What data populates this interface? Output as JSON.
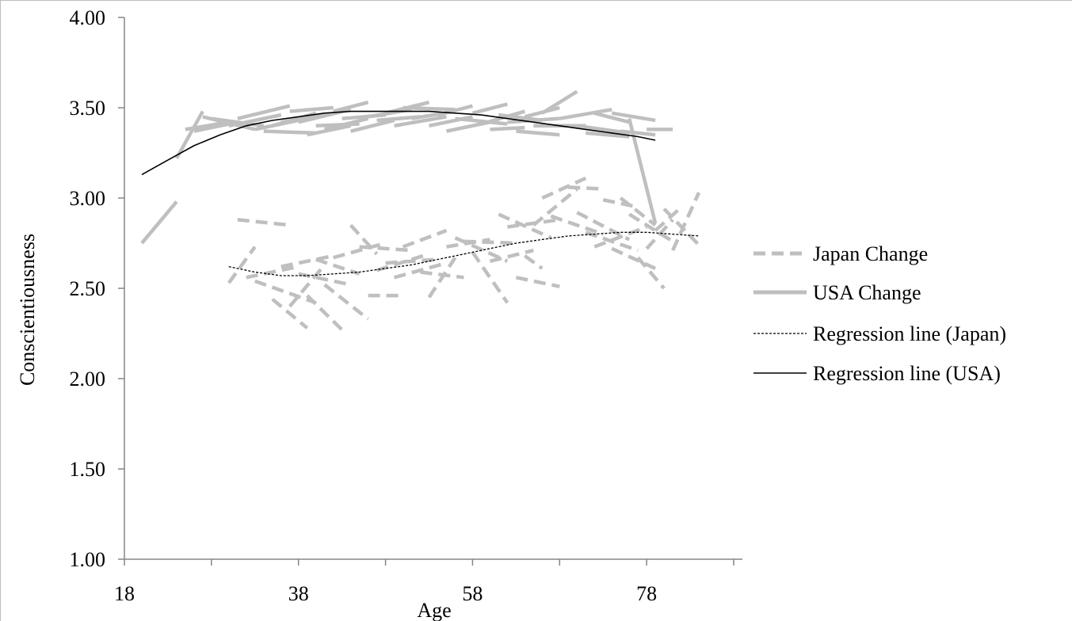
{
  "chart_data": {
    "type": "line",
    "title": "",
    "xlabel": "Age",
    "ylabel": "Conscientiousness",
    "xlim": [
      18,
      89
    ],
    "ylim": [
      1.0,
      4.0
    ],
    "x_ticks": [
      "18",
      "38",
      "58",
      "78"
    ],
    "y_ticks": [
      "1.00",
      "1.50",
      "2.00",
      "2.50",
      "3.00",
      "3.50",
      "4.00"
    ],
    "grid": false,
    "legend_position": "right",
    "legend": [
      "Japan Change",
      "USA Change",
      "Regression line (Japan)",
      "Regression line (USA)"
    ],
    "colors": {
      "change": "#bfbfbf",
      "regression": "#000000"
    },
    "series": [
      {
        "name": "Japan Change",
        "style": "dashed",
        "segments": [
          [
            [
              30,
              2.53
            ],
            [
              33,
              2.73
            ]
          ],
          [
            [
              31,
              2.88
            ],
            [
              37,
              2.85
            ]
          ],
          [
            [
              32,
              2.56
            ],
            [
              38,
              2.62
            ]
          ],
          [
            [
              33,
              2.54
            ],
            [
              40,
              2.42
            ]
          ],
          [
            [
              35,
              2.44
            ],
            [
              39,
              2.28
            ]
          ],
          [
            [
              36,
              2.62
            ],
            [
              42,
              2.68
            ]
          ],
          [
            [
              37,
              2.4
            ],
            [
              41,
              2.63
            ]
          ],
          [
            [
              38,
              2.58
            ],
            [
              44,
              2.52
            ]
          ],
          [
            [
              39,
              2.46
            ],
            [
              43,
              2.27
            ]
          ],
          [
            [
              40,
              2.66
            ],
            [
              45,
              2.58
            ]
          ],
          [
            [
              41,
              2.52
            ],
            [
              46,
              2.33
            ]
          ],
          [
            [
              42,
              2.67
            ],
            [
              48,
              2.75
            ]
          ],
          [
            [
              44,
              2.85
            ],
            [
              47,
              2.69
            ]
          ],
          [
            [
              45,
              2.73
            ],
            [
              51,
              2.71
            ]
          ],
          [
            [
              46,
              2.46
            ],
            [
              50,
              2.46
            ]
          ],
          [
            [
              47,
              2.6
            ],
            [
              53,
              2.69
            ]
          ],
          [
            [
              48,
              2.64
            ],
            [
              54,
              2.66
            ]
          ],
          [
            [
              49,
              2.56
            ],
            [
              55,
              2.64
            ]
          ],
          [
            [
              50,
              2.73
            ],
            [
              55,
              2.82
            ]
          ],
          [
            [
              52,
              2.59
            ],
            [
              57,
              2.56
            ]
          ],
          [
            [
              53,
              2.45
            ],
            [
              56,
              2.67
            ]
          ],
          [
            [
              55,
              2.73
            ],
            [
              60,
              2.77
            ]
          ],
          [
            [
              56,
              2.78
            ],
            [
              62,
              2.65
            ]
          ],
          [
            [
              57,
              2.76
            ],
            [
              63,
              2.75
            ]
          ],
          [
            [
              58,
              2.7
            ],
            [
              62,
              2.42
            ]
          ],
          [
            [
              60,
              2.65
            ],
            [
              65,
              2.71
            ]
          ],
          [
            [
              61,
              2.91
            ],
            [
              67,
              2.78
            ]
          ],
          [
            [
              62,
              2.84
            ],
            [
              68,
              2.88
            ]
          ],
          [
            [
              63,
              2.56
            ],
            [
              68,
              2.51
            ]
          ],
          [
            [
              64,
              2.68
            ],
            [
              66,
              2.61
            ]
          ],
          [
            [
              65,
              2.85
            ],
            [
              70,
              3.05
            ]
          ],
          [
            [
              66,
              3.0
            ],
            [
              71,
              3.11
            ]
          ],
          [
            [
              67,
              2.9
            ],
            [
              73,
              2.8
            ]
          ],
          [
            [
              69,
              3.06
            ],
            [
              73,
              3.05
            ]
          ],
          [
            [
              70,
              2.92
            ],
            [
              76,
              2.77
            ]
          ],
          [
            [
              71,
              2.81
            ],
            [
              77,
              2.71
            ]
          ],
          [
            [
              72,
              2.73
            ],
            [
              78,
              2.84
            ]
          ],
          [
            [
              73,
              2.99
            ],
            [
              77,
              2.95
            ]
          ],
          [
            [
              74,
              2.72
            ],
            [
              79,
              2.61
            ]
          ],
          [
            [
              75,
              3.0
            ],
            [
              79,
              2.85
            ]
          ],
          [
            [
              76,
              2.91
            ],
            [
              81,
              2.76
            ]
          ],
          [
            [
              77,
              2.67
            ],
            [
              80,
              2.5
            ]
          ],
          [
            [
              78,
              2.72
            ],
            [
              81,
              2.88
            ]
          ],
          [
            [
              79,
              2.82
            ],
            [
              82,
              2.95
            ]
          ],
          [
            [
              80,
              2.94
            ],
            [
              84,
              2.74
            ]
          ],
          [
            [
              81,
              2.71
            ],
            [
              84,
              3.03
            ]
          ]
        ]
      },
      {
        "name": "USA Change",
        "style": "solid",
        "segments": [
          [
            [
              20,
              2.75
            ],
            [
              24,
              2.98
            ]
          ],
          [
            [
              24,
              3.22
            ],
            [
              27,
              3.48
            ]
          ],
          [
            [
              25,
              3.38
            ],
            [
              30,
              3.42
            ]
          ],
          [
            [
              26,
              3.37
            ],
            [
              31,
              3.42
            ]
          ],
          [
            [
              27,
              3.45
            ],
            [
              33,
              3.38
            ]
          ],
          [
            [
              28,
              3.44
            ],
            [
              34,
              3.4
            ]
          ],
          [
            [
              30,
              3.4
            ],
            [
              36,
              3.46
            ]
          ],
          [
            [
              31,
              3.44
            ],
            [
              37,
              3.51
            ]
          ],
          [
            [
              33,
              3.38
            ],
            [
              38,
              3.43
            ]
          ],
          [
            [
              34,
              3.37
            ],
            [
              40,
              3.36
            ]
          ],
          [
            [
              35,
              3.4
            ],
            [
              40,
              3.47
            ]
          ],
          [
            [
              36,
              3.42
            ],
            [
              41,
              3.46
            ]
          ],
          [
            [
              37,
              3.48
            ],
            [
              42,
              3.5
            ]
          ],
          [
            [
              38,
              3.42
            ],
            [
              44,
              3.49
            ]
          ],
          [
            [
              39,
              3.35
            ],
            [
              44,
              3.4
            ]
          ],
          [
            [
              40,
              3.4
            ],
            [
              45,
              3.41
            ]
          ],
          [
            [
              41,
              3.38
            ],
            [
              46,
              3.44
            ]
          ],
          [
            [
              42,
              3.48
            ],
            [
              46,
              3.53
            ]
          ],
          [
            [
              43,
              3.44
            ],
            [
              48,
              3.46
            ]
          ],
          [
            [
              44,
              3.37
            ],
            [
              49,
              3.43
            ]
          ],
          [
            [
              46,
              3.45
            ],
            [
              51,
              3.49
            ]
          ],
          [
            [
              47,
              3.43
            ],
            [
              52,
              3.45
            ]
          ],
          [
            [
              48,
              3.47
            ],
            [
              53,
              3.53
            ]
          ],
          [
            [
              49,
              3.4
            ],
            [
              55,
              3.45
            ]
          ],
          [
            [
              50,
              3.5
            ],
            [
              56,
              3.49
            ]
          ],
          [
            [
              51,
              3.44
            ],
            [
              56,
              3.48
            ]
          ],
          [
            [
              53,
              3.4
            ],
            [
              58,
              3.45
            ]
          ],
          [
            [
              54,
              3.46
            ],
            [
              58,
              3.51
            ]
          ],
          [
            [
              55,
              3.37
            ],
            [
              61,
              3.43
            ]
          ],
          [
            [
              56,
              3.44
            ],
            [
              62,
              3.41
            ]
          ],
          [
            [
              58,
              3.47
            ],
            [
              62,
              3.52
            ]
          ],
          [
            [
              59,
              3.41
            ],
            [
              64,
              3.48
            ]
          ],
          [
            [
              60,
              3.38
            ],
            [
              64,
              3.39
            ]
          ],
          [
            [
              61,
              3.46
            ],
            [
              66,
              3.43
            ]
          ],
          [
            [
              62,
              3.42
            ],
            [
              68,
              3.44
            ]
          ],
          [
            [
              63,
              3.37
            ],
            [
              68,
              3.35
            ]
          ],
          [
            [
              64,
              3.45
            ],
            [
              68,
              3.5
            ]
          ],
          [
            [
              65,
              3.4
            ],
            [
              71,
              3.4
            ]
          ],
          [
            [
              66,
              3.47
            ],
            [
              70,
              3.59
            ]
          ],
          [
            [
              68,
              3.44
            ],
            [
              74,
              3.49
            ]
          ],
          [
            [
              70,
              3.4
            ],
            [
              76,
              3.36
            ]
          ],
          [
            [
              71,
              3.36
            ],
            [
              76,
              3.34
            ]
          ],
          [
            [
              72,
              3.47
            ],
            [
              76,
              3.42
            ]
          ],
          [
            [
              74,
              3.47
            ],
            [
              79,
              3.43
            ]
          ],
          [
            [
              75,
              3.37
            ],
            [
              79,
              3.35
            ]
          ],
          [
            [
              76,
              3.44
            ],
            [
              79,
              2.86
            ]
          ],
          [
            [
              78,
              3.38
            ],
            [
              81,
              3.38
            ]
          ]
        ]
      },
      {
        "name": "Regression line (Japan)",
        "style": "dotted",
        "points": [
          [
            30,
            2.62
          ],
          [
            33,
            2.59
          ],
          [
            36,
            2.57
          ],
          [
            39,
            2.57
          ],
          [
            42,
            2.58
          ],
          [
            45,
            2.59
          ],
          [
            48,
            2.61
          ],
          [
            51,
            2.63
          ],
          [
            54,
            2.66
          ],
          [
            57,
            2.69
          ],
          [
            60,
            2.72
          ],
          [
            63,
            2.75
          ],
          [
            66,
            2.77
          ],
          [
            69,
            2.79
          ],
          [
            72,
            2.8
          ],
          [
            75,
            2.81
          ],
          [
            78,
            2.81
          ],
          [
            81,
            2.8
          ],
          [
            84,
            2.79
          ]
        ]
      },
      {
        "name": "Regression line (USA)",
        "style": "solid",
        "points": [
          [
            20,
            3.13
          ],
          [
            23,
            3.21
          ],
          [
            26,
            3.29
          ],
          [
            29,
            3.35
          ],
          [
            32,
            3.4
          ],
          [
            35,
            3.43
          ],
          [
            38,
            3.45
          ],
          [
            41,
            3.47
          ],
          [
            44,
            3.48
          ],
          [
            47,
            3.48
          ],
          [
            50,
            3.48
          ],
          [
            53,
            3.48
          ],
          [
            56,
            3.47
          ],
          [
            59,
            3.46
          ],
          [
            62,
            3.44
          ],
          [
            65,
            3.42
          ],
          [
            68,
            3.4
          ],
          [
            71,
            3.38
          ],
          [
            74,
            3.36
          ],
          [
            77,
            3.34
          ],
          [
            79,
            3.32
          ]
        ]
      }
    ]
  }
}
